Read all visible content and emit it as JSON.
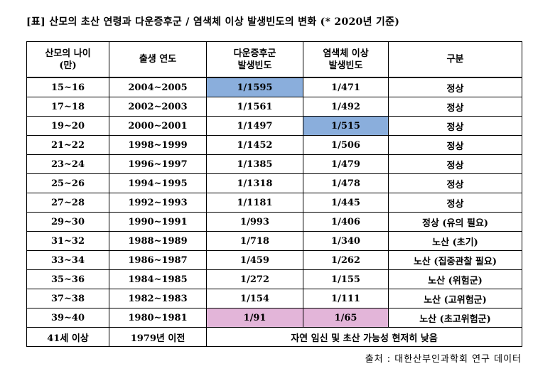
{
  "title": "[표] 산모의 초산 연령과 다운증후군 / 염색체 이상 발생빈도의 변화 (* 2020년 기준)",
  "headers": {
    "age": "산모의 나이\n(만)",
    "birth_year": "출생 연도",
    "down": "다운증후군\n발생빈도",
    "chromosome": "염색체 이상\n발생빈도",
    "category": "구분"
  },
  "rows": [
    {
      "age": "15~16",
      "birth_year": "2004~2005",
      "down": "1/1595",
      "chromosome": "1/471",
      "category": "정상"
    },
    {
      "age": "17~18",
      "birth_year": "2002~2003",
      "down": "1/1561",
      "chromosome": "1/492",
      "category": "정상"
    },
    {
      "age": "19~20",
      "birth_year": "2000~2001",
      "down": "1/1497",
      "chromosome": "1/515",
      "category": "정상"
    },
    {
      "age": "21~22",
      "birth_year": "1998~1999",
      "down": "1/1452",
      "chromosome": "1/506",
      "category": "정상"
    },
    {
      "age": "23~24",
      "birth_year": "1996~1997",
      "down": "1/1385",
      "chromosome": "1/479",
      "category": "정상"
    },
    {
      "age": "25~26",
      "birth_year": "1994~1995",
      "down": "1/1318",
      "chromosome": "1/478",
      "category": "정상"
    },
    {
      "age": "27~28",
      "birth_year": "1992~1993",
      "down": "1/1181",
      "chromosome": "1/445",
      "category": "정상"
    },
    {
      "age": "29~30",
      "birth_year": "1990~1991",
      "down": "1/993",
      "chromosome": "1/406",
      "category": "정상 (유의 필요)"
    },
    {
      "age": "31~32",
      "birth_year": "1988~1989",
      "down": "1/718",
      "chromosome": "1/340",
      "category": "노산 (초기)"
    },
    {
      "age": "33~34",
      "birth_year": "1986~1987",
      "down": "1/459",
      "chromosome": "1/262",
      "category": "노산 (집중관찰 필요)"
    },
    {
      "age": "35~36",
      "birth_year": "1984~1985",
      "down": "1/272",
      "chromosome": "1/155",
      "category": "노산 (위험군)"
    },
    {
      "age": "37~38",
      "birth_year": "1982~1983",
      "down": "1/154",
      "chromosome": "1/111",
      "category": "노산 (고위험군)"
    },
    {
      "age": "39~40",
      "birth_year": "1980~1981",
      "down": "1/91",
      "chromosome": "1/65",
      "category": "노산 (초고위험군)"
    }
  ],
  "last_row": {
    "age": "41세 이상",
    "birth_year": "1979년 이전",
    "note": "자연 임신 및 초산 가능성 현저히 낮음"
  },
  "highlights": {
    "blue": "#8aaedc",
    "pink": "#e3b5d9",
    "cells": [
      {
        "row": 0,
        "col": "down",
        "color": "blue"
      },
      {
        "row": 2,
        "col": "chromosome",
        "color": "blue"
      },
      {
        "row": 12,
        "col": "down",
        "color": "pink"
      },
      {
        "row": 12,
        "col": "chromosome",
        "color": "pink"
      }
    ]
  },
  "source": "출처 : 대한산부인과학회 연구 데이터"
}
